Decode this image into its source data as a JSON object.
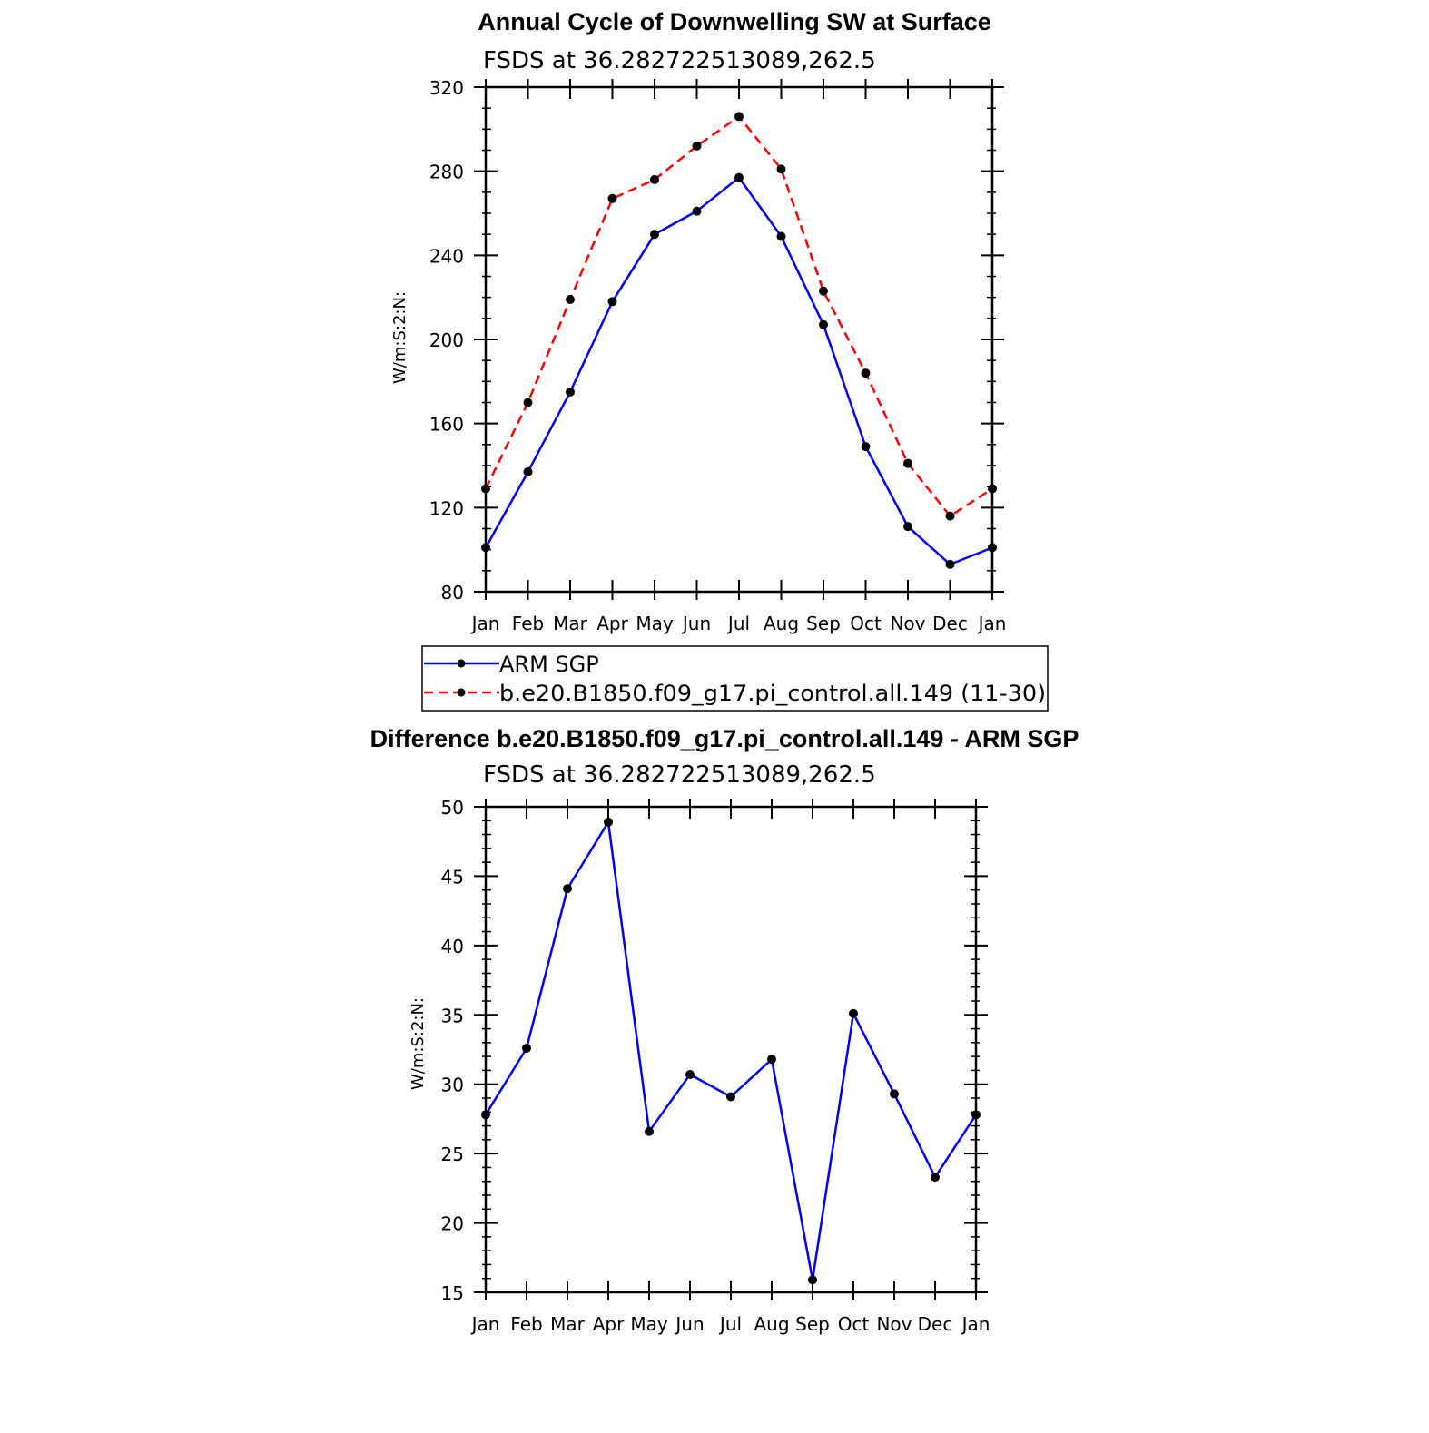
{
  "chart_data": [
    {
      "type": "line",
      "title": "Annual Cycle of Downwelling SW at Surface",
      "subtitle": "FSDS at 36.282722513089,262.5",
      "ylabel": "W/m:S:2:N:",
      "categories": [
        "Jan",
        "Feb",
        "Mar",
        "Apr",
        "May",
        "Jun",
        "Jul",
        "Aug",
        "Sep",
        "Oct",
        "Nov",
        "Dec",
        "Jan"
      ],
      "ylim": [
        80,
        320
      ],
      "yticks": [
        80,
        120,
        160,
        200,
        240,
        280,
        320
      ],
      "yminor": 10,
      "series": [
        {
          "name": "ARM SGP",
          "color": "#0000ff",
          "dash": "solid",
          "values": [
            101,
            137,
            175,
            218,
            250,
            261,
            277,
            249,
            207,
            149,
            111,
            93,
            101
          ]
        },
        {
          "name": "b.e20.B1850.f09_g17.pi_control.all.149 (11-30)",
          "color": "#ff0000",
          "dash": "dashed",
          "values": [
            129,
            170,
            219,
            267,
            276,
            292,
            306,
            281,
            223,
            184,
            141,
            116,
            129
          ]
        }
      ],
      "legend": "below"
    },
    {
      "type": "line",
      "title": "Difference b.e20.B1850.f09_g17.pi_control.all.149 - ARM SGP",
      "subtitle": "FSDS at 36.282722513089,262.5",
      "ylabel": "W/m:S:2:N:",
      "categories": [
        "Jan",
        "Feb",
        "Mar",
        "Apr",
        "May",
        "Jun",
        "Jul",
        "Aug",
        "Sep",
        "Oct",
        "Nov",
        "Dec",
        "Jan"
      ],
      "ylim": [
        15,
        50
      ],
      "yticks": [
        15,
        20,
        25,
        30,
        35,
        40,
        45,
        50
      ],
      "yminor": 1,
      "series": [
        {
          "color": "#0000ff",
          "dash": "solid",
          "values": [
            27.8,
            32.6,
            44.1,
            48.9,
            26.6,
            30.7,
            29.1,
            31.8,
            15.9,
            35.1,
            29.3,
            23.3,
            27.8
          ]
        }
      ]
    }
  ]
}
